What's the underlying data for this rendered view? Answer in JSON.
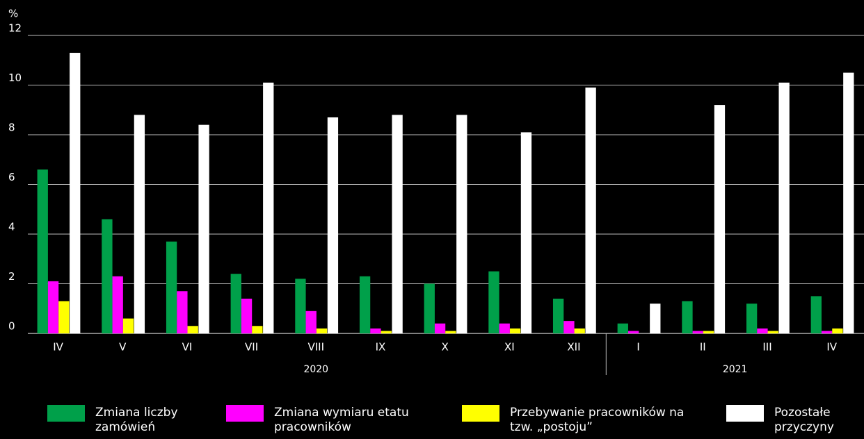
{
  "chart_data": {
    "type": "bar",
    "ylabel": "%",
    "groups": [
      {
        "name": "2020",
        "categories": [
          "IV",
          "V",
          "VI",
          "VII",
          "VIII",
          "IX",
          "X",
          "XI",
          "XII"
        ]
      },
      {
        "name": "2021",
        "categories": [
          "I",
          "II",
          "III",
          "IV"
        ]
      }
    ],
    "series": [
      {
        "name": "Zmiana liczby zamówień",
        "color": "#00a04a",
        "values": [
          6.6,
          4.6,
          3.7,
          2.4,
          2.2,
          2.3,
          2.0,
          2.5,
          1.4,
          0.4,
          1.3,
          1.2,
          1.5
        ]
      },
      {
        "name": "Zmiana wymiaru etatu pracowników",
        "color": "#ff00ff",
        "values": [
          2.1,
          2.3,
          1.7,
          1.4,
          0.9,
          0.2,
          0.4,
          0.4,
          0.5,
          0.1,
          0.1,
          0.2,
          0.1
        ]
      },
      {
        "name": "Przebywanie pracowników na tzw. „postoju”",
        "color": "#ffff00",
        "values": [
          1.3,
          0.6,
          0.3,
          0.3,
          0.2,
          0.1,
          0.1,
          0.2,
          0.2,
          0,
          0.1,
          0.1,
          0.2
        ]
      },
      {
        "name": "Pozostałe przyczyny",
        "color": "#ffffff",
        "values": [
          11.3,
          8.8,
          8.4,
          10.1,
          8.7,
          8.8,
          8.8,
          8.1,
          9.9,
          1.2,
          9.2,
          10.1,
          10.5
        ]
      }
    ],
    "ylim": [
      0,
      12
    ],
    "yticks": [
      0,
      2,
      4,
      6,
      8,
      10,
      12
    ],
    "grid": true,
    "legend": "bottom"
  }
}
